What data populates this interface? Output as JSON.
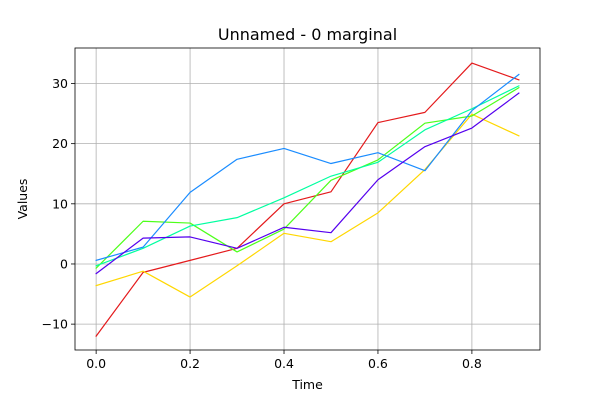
{
  "chart_data": {
    "type": "line",
    "title": "Unnamed - 0 marginal",
    "xlabel": "Time",
    "ylabel": "Values",
    "xlim": [
      -0.045,
      0.945
    ],
    "ylim": [
      -14.3,
      35.9
    ],
    "xticks": [
      0.0,
      0.2,
      0.4,
      0.6,
      0.8
    ],
    "xtick_labels": [
      "0.0",
      "0.2",
      "0.4",
      "0.6",
      "0.8"
    ],
    "yticks": [
      -10,
      0,
      10,
      20,
      30
    ],
    "ytick_labels": [
      "−10",
      "0",
      "10",
      "20",
      "30"
    ],
    "grid": true,
    "legend": false,
    "x": [
      0.0,
      0.1,
      0.2,
      0.3,
      0.4,
      0.5,
      0.6,
      0.7,
      0.8,
      0.9
    ],
    "series": [
      {
        "color": "#e41a1c",
        "values": [
          -12.0,
          -1.4,
          0.6,
          2.6,
          10.0,
          12.0,
          23.5,
          25.2,
          33.4,
          30.6
        ]
      },
      {
        "color": "#ffd700",
        "values": [
          -3.6,
          -1.2,
          -5.5,
          -0.3,
          5.1,
          3.7,
          8.5,
          15.7,
          24.9,
          21.3
        ]
      },
      {
        "color": "#4dff1a",
        "values": [
          -0.7,
          7.1,
          6.8,
          2.0,
          5.8,
          13.9,
          17.3,
          23.4,
          24.6,
          29.3
        ]
      },
      {
        "color": "#00ffa0",
        "values": [
          -0.3,
          2.6,
          6.3,
          7.7,
          11.0,
          14.6,
          16.9,
          22.3,
          25.8,
          29.6
        ]
      },
      {
        "color": "#1a8cff",
        "values": [
          0.6,
          2.8,
          11.9,
          17.4,
          19.2,
          16.7,
          18.5,
          15.5,
          25.5,
          31.5
        ]
      },
      {
        "color": "#5500ee",
        "values": [
          -1.6,
          4.3,
          4.5,
          2.6,
          6.1,
          5.2,
          14.0,
          19.5,
          22.6,
          28.4
        ]
      }
    ]
  }
}
